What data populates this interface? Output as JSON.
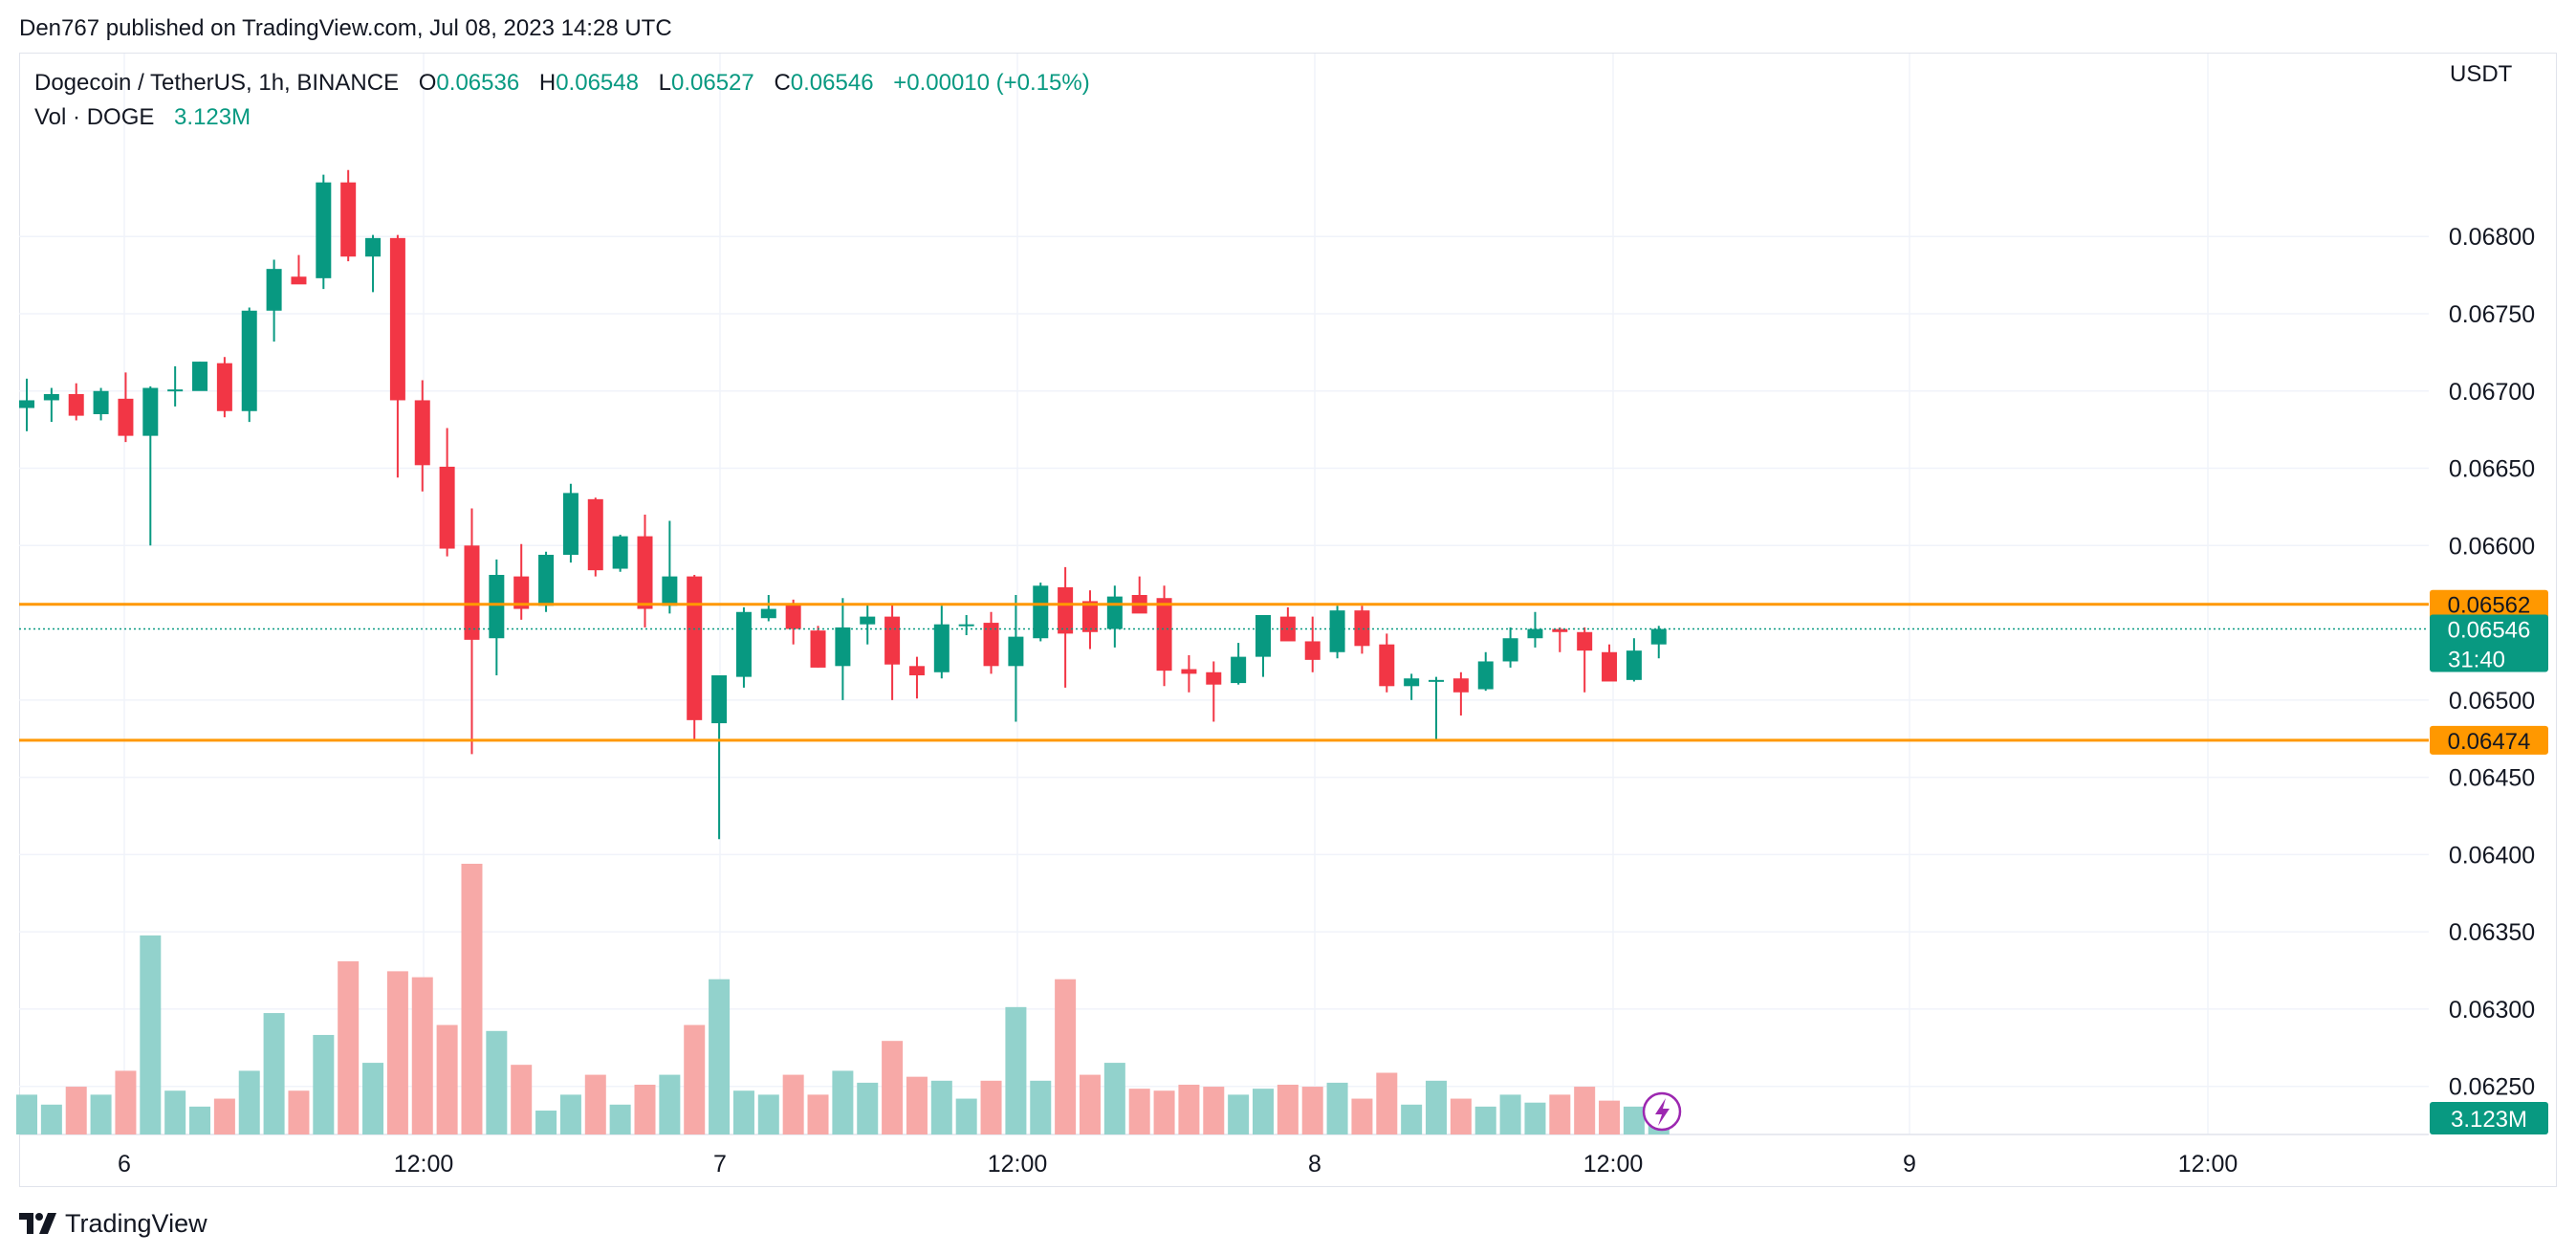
{
  "publisher": "Den767 published on TradingView.com, Jul 08, 2023 14:28 UTC",
  "legend": {
    "symbol": "Dogecoin / TetherUS, 1h, BINANCE",
    "o_label": "O",
    "o": "0.06536",
    "h_label": "H",
    "h": "0.06548",
    "l_label": "L",
    "l": "0.06527",
    "c_label": "C",
    "c": "0.06546",
    "change": "+0.00010 (+0.15%)",
    "vol_label": "Vol · DOGE",
    "vol": "3.123M"
  },
  "currency": "USDT",
  "footer_brand": "TradingView",
  "colors": {
    "up": "#089981",
    "down": "#f23645",
    "up_volume": "#92d2cc",
    "down_volume": "#f7a9a7",
    "level_line": "#ff9800",
    "last_price": "#089981",
    "grid": "#f0f3fa",
    "icon": "#9c27b0"
  },
  "chart_data": {
    "type": "candlestick",
    "interval": "1h",
    "y_range": [
      0.06243,
      0.06893
    ],
    "y_ticks": [
      "0.06800",
      "0.06750",
      "0.06700",
      "0.06650",
      "0.06600",
      "0.06500",
      "0.06450",
      "0.06400",
      "0.06350",
      "0.06300",
      "0.06250"
    ],
    "x_ticks": [
      "6",
      "12:00",
      "7",
      "12:00",
      "8",
      "12:00",
      "9",
      "12:00"
    ],
    "horizontal_levels": [
      "0.06562",
      "0.06474"
    ],
    "last_price": "0.06546",
    "countdown": "31:40",
    "volume_label": "3.123M",
    "candles": [
      {
        "o": 0.06689,
        "h": 0.06708,
        "l": 0.06674,
        "c": 0.06694,
        "v": 20
      },
      {
        "o": 0.06694,
        "h": 0.06702,
        "l": 0.0668,
        "c": 0.06698,
        "v": 15
      },
      {
        "o": 0.06698,
        "h": 0.06705,
        "l": 0.06681,
        "c": 0.06684,
        "v": 24
      },
      {
        "o": 0.06685,
        "h": 0.06702,
        "l": 0.06681,
        "c": 0.067,
        "v": 20
      },
      {
        "o": 0.06695,
        "h": 0.06712,
        "l": 0.06667,
        "c": 0.06671,
        "v": 32
      },
      {
        "o": 0.06671,
        "h": 0.06703,
        "l": 0.066,
        "c": 0.06702,
        "v": 100
      },
      {
        "o": 0.067,
        "h": 0.06716,
        "l": 0.0669,
        "c": 0.06701,
        "v": 22
      },
      {
        "o": 0.067,
        "h": 0.06719,
        "l": 0.06702,
        "c": 0.06719,
        "v": 14
      },
      {
        "o": 0.06718,
        "h": 0.06722,
        "l": 0.06683,
        "c": 0.06687,
        "v": 18
      },
      {
        "o": 0.06687,
        "h": 0.06754,
        "l": 0.0668,
        "c": 0.06752,
        "v": 32
      },
      {
        "o": 0.06752,
        "h": 0.06785,
        "l": 0.06732,
        "c": 0.06779,
        "v": 61
      },
      {
        "o": 0.06774,
        "h": 0.06788,
        "l": 0.06771,
        "c": 0.06769,
        "v": 22
      },
      {
        "o": 0.06773,
        "h": 0.0684,
        "l": 0.06766,
        "c": 0.06835,
        "v": 50
      },
      {
        "o": 0.06835,
        "h": 0.06843,
        "l": 0.06784,
        "c": 0.06787,
        "v": 87
      },
      {
        "o": 0.06787,
        "h": 0.06801,
        "l": 0.06764,
        "c": 0.06799,
        "v": 36
      },
      {
        "o": 0.06799,
        "h": 0.06801,
        "l": 0.06644,
        "c": 0.06694,
        "v": 82
      },
      {
        "o": 0.06694,
        "h": 0.06707,
        "l": 0.06635,
        "c": 0.06652,
        "v": 79
      },
      {
        "o": 0.06651,
        "h": 0.06676,
        "l": 0.06593,
        "c": 0.06598,
        "v": 55
      },
      {
        "o": 0.066,
        "h": 0.06624,
        "l": 0.06465,
        "c": 0.06539,
        "v": 136
      },
      {
        "o": 0.0654,
        "h": 0.06591,
        "l": 0.06516,
        "c": 0.06581,
        "v": 52
      },
      {
        "o": 0.0658,
        "h": 0.06601,
        "l": 0.06552,
        "c": 0.06559,
        "v": 35
      },
      {
        "o": 0.06561,
        "h": 0.06596,
        "l": 0.06557,
        "c": 0.06594,
        "v": 12
      },
      {
        "o": 0.06594,
        "h": 0.0664,
        "l": 0.06589,
        "c": 0.06634,
        "v": 20
      },
      {
        "o": 0.0663,
        "h": 0.06631,
        "l": 0.0658,
        "c": 0.06584,
        "v": 30
      },
      {
        "o": 0.06585,
        "h": 0.06607,
        "l": 0.06583,
        "c": 0.06606,
        "v": 15
      },
      {
        "o": 0.06606,
        "h": 0.0662,
        "l": 0.06547,
        "c": 0.06559,
        "v": 25
      },
      {
        "o": 0.06561,
        "h": 0.06616,
        "l": 0.06556,
        "c": 0.0658,
        "v": 30
      },
      {
        "o": 0.0658,
        "h": 0.06581,
        "l": 0.06474,
        "c": 0.06487,
        "v": 55
      },
      {
        "o": 0.06485,
        "h": 0.06514,
        "l": 0.0641,
        "c": 0.06516,
        "v": 78
      },
      {
        "o": 0.06515,
        "h": 0.0656,
        "l": 0.06508,
        "c": 0.06557,
        "v": 22
      },
      {
        "o": 0.06553,
        "h": 0.06568,
        "l": 0.06551,
        "c": 0.06559,
        "v": 20
      },
      {
        "o": 0.06562,
        "h": 0.06565,
        "l": 0.06536,
        "c": 0.06546,
        "v": 30
      },
      {
        "o": 0.06545,
        "h": 0.06548,
        "l": 0.06521,
        "c": 0.06521,
        "v": 20
      },
      {
        "o": 0.06522,
        "h": 0.06566,
        "l": 0.065,
        "c": 0.06547,
        "v": 32
      },
      {
        "o": 0.06549,
        "h": 0.06562,
        "l": 0.06536,
        "c": 0.06554,
        "v": 26
      },
      {
        "o": 0.06554,
        "h": 0.06562,
        "l": 0.065,
        "c": 0.06523,
        "v": 47
      },
      {
        "o": 0.06522,
        "h": 0.06528,
        "l": 0.06501,
        "c": 0.06516,
        "v": 29
      },
      {
        "o": 0.06518,
        "h": 0.06561,
        "l": 0.06514,
        "c": 0.06549,
        "v": 27
      },
      {
        "o": 0.06549,
        "h": 0.06555,
        "l": 0.06542,
        "c": 0.06549,
        "v": 18
      },
      {
        "o": 0.0655,
        "h": 0.06557,
        "l": 0.06517,
        "c": 0.06522,
        "v": 27
      },
      {
        "o": 0.06522,
        "h": 0.06568,
        "l": 0.06486,
        "c": 0.06541,
        "v": 64
      },
      {
        "o": 0.0654,
        "h": 0.06576,
        "l": 0.06538,
        "c": 0.06574,
        "v": 27
      },
      {
        "o": 0.06573,
        "h": 0.06586,
        "l": 0.06508,
        "c": 0.06543,
        "v": 78
      },
      {
        "o": 0.06564,
        "h": 0.06571,
        "l": 0.06533,
        "c": 0.06544,
        "v": 30
      },
      {
        "o": 0.06546,
        "h": 0.06574,
        "l": 0.06534,
        "c": 0.06567,
        "v": 36
      },
      {
        "o": 0.06568,
        "h": 0.0658,
        "l": 0.0656,
        "c": 0.06556,
        "v": 23
      },
      {
        "o": 0.06566,
        "h": 0.06574,
        "l": 0.06509,
        "c": 0.06519,
        "v": 22
      },
      {
        "o": 0.0652,
        "h": 0.06529,
        "l": 0.06505,
        "c": 0.06517,
        "v": 25
      },
      {
        "o": 0.06518,
        "h": 0.06525,
        "l": 0.06486,
        "c": 0.0651,
        "v": 24
      },
      {
        "o": 0.06511,
        "h": 0.06537,
        "l": 0.0651,
        "c": 0.06528,
        "v": 20
      },
      {
        "o": 0.06528,
        "h": 0.06555,
        "l": 0.06515,
        "c": 0.06555,
        "v": 23
      },
      {
        "o": 0.06554,
        "h": 0.0656,
        "l": 0.06542,
        "c": 0.06538,
        "v": 25
      },
      {
        "o": 0.06538,
        "h": 0.06554,
        "l": 0.06518,
        "c": 0.06526,
        "v": 24
      },
      {
        "o": 0.06531,
        "h": 0.06561,
        "l": 0.06527,
        "c": 0.06558,
        "v": 26
      },
      {
        "o": 0.06558,
        "h": 0.06561,
        "l": 0.0653,
        "c": 0.06535,
        "v": 18
      },
      {
        "o": 0.06536,
        "h": 0.06543,
        "l": 0.06505,
        "c": 0.06509,
        "v": 31
      },
      {
        "o": 0.06509,
        "h": 0.06517,
        "l": 0.065,
        "c": 0.06514,
        "v": 15
      },
      {
        "o": 0.06512,
        "h": 0.06515,
        "l": 0.06474,
        "c": 0.06513,
        "v": 27
      },
      {
        "o": 0.06514,
        "h": 0.06518,
        "l": 0.0649,
        "c": 0.06505,
        "v": 18
      },
      {
        "o": 0.06507,
        "h": 0.06531,
        "l": 0.06506,
        "c": 0.06525,
        "v": 14
      },
      {
        "o": 0.06525,
        "h": 0.06547,
        "l": 0.06521,
        "c": 0.0654,
        "v": 20
      },
      {
        "o": 0.0654,
        "h": 0.06557,
        "l": 0.06534,
        "c": 0.06546,
        "v": 16
      },
      {
        "o": 0.06546,
        "h": 0.06547,
        "l": 0.06531,
        "c": 0.06544,
        "v": 20
      },
      {
        "o": 0.06544,
        "h": 0.06547,
        "l": 0.06505,
        "c": 0.06532,
        "v": 24
      },
      {
        "o": 0.06531,
        "h": 0.06536,
        "l": 0.06515,
        "c": 0.06512,
        "v": 17
      },
      {
        "o": 0.06513,
        "h": 0.0654,
        "l": 0.06512,
        "c": 0.06532,
        "v": 14
      },
      {
        "o": 0.06536,
        "h": 0.06548,
        "l": 0.06527,
        "c": 0.06546,
        "v": 15
      }
    ]
  }
}
